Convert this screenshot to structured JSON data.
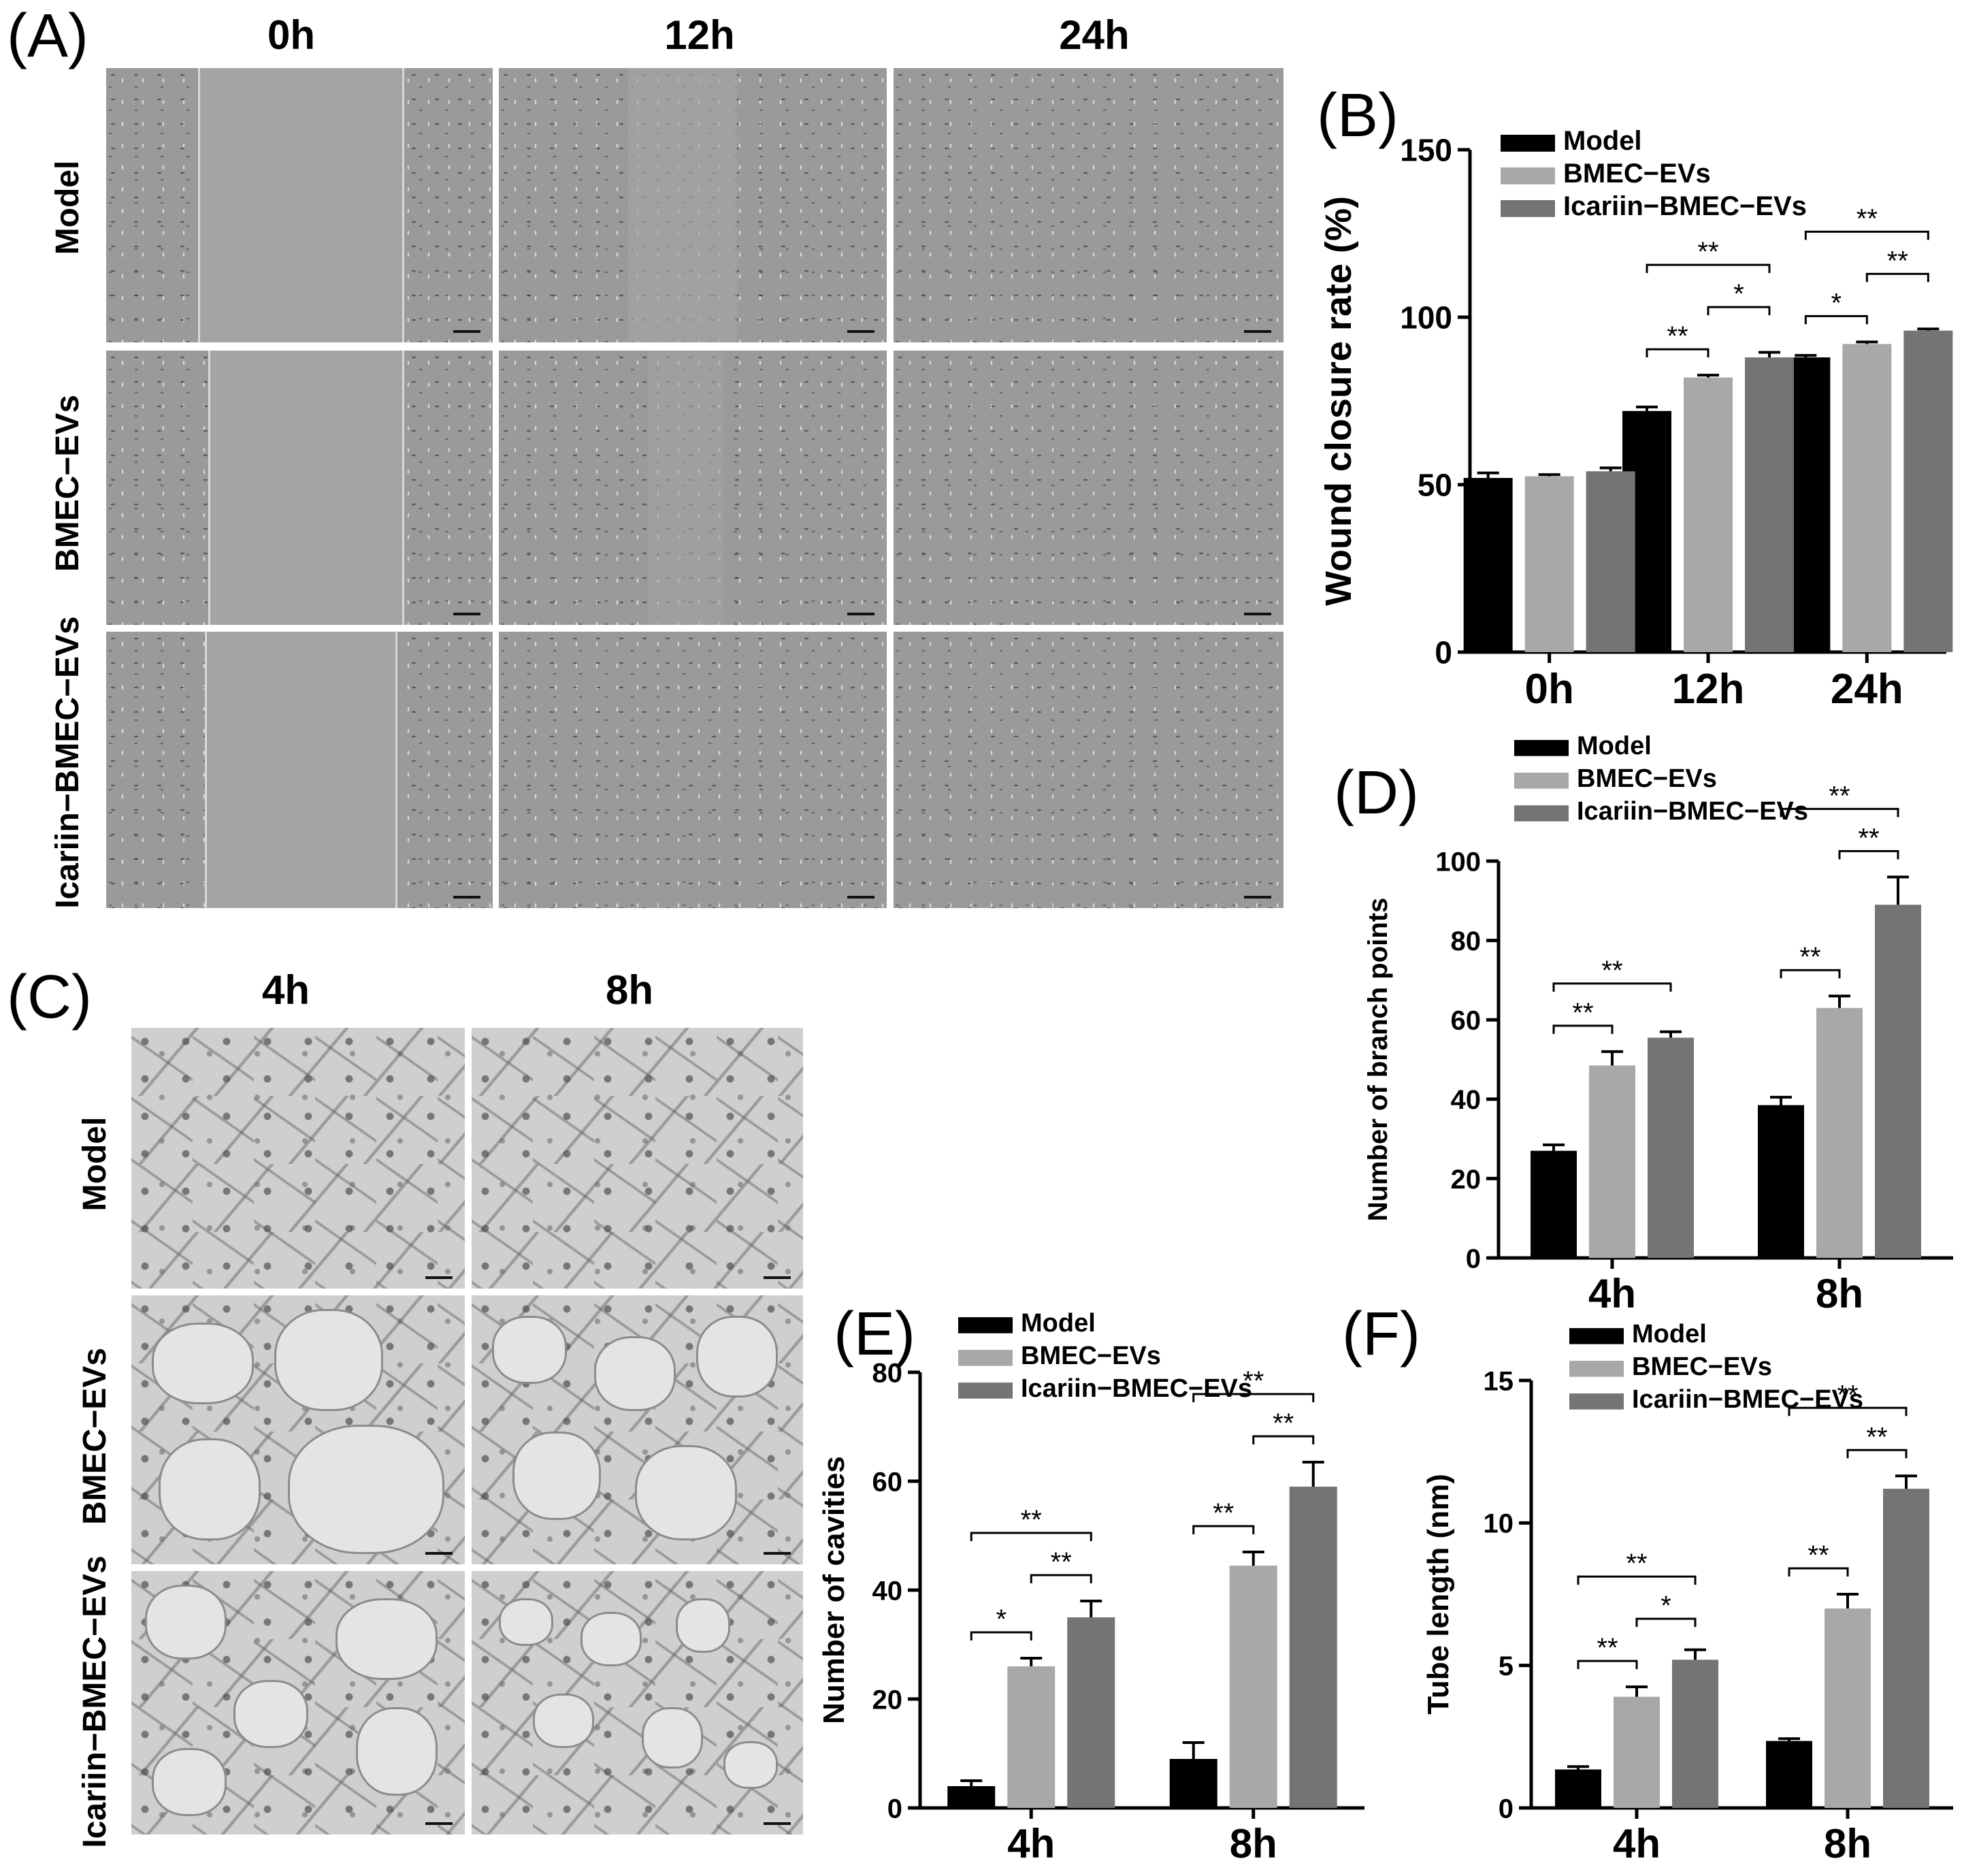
{
  "panels": {
    "A": {
      "label": "(A)",
      "columns": [
        "0h",
        "12h",
        "24h"
      ],
      "rows": [
        "Model",
        "BMEC−EVs",
        "Icariin−BMEC−EVs"
      ]
    },
    "C": {
      "label": "(C)",
      "columns": [
        "4h",
        "8h"
      ],
      "rows": [
        "Model",
        "BMEC−EVs",
        "Icariin−BMEC−EVs"
      ]
    }
  },
  "chart_data": [
    {
      "id": "B",
      "panel_label": "(B)",
      "type": "bar",
      "ylabel": "Wound closure rate (%)",
      "xlabel": "",
      "categories": [
        "0h",
        "12h",
        "24h"
      ],
      "ylim": [
        0,
        150
      ],
      "yticks": [
        0,
        50,
        100,
        150
      ],
      "series": [
        {
          "name": "Model",
          "color": "#000000",
          "values": [
            52,
            72,
            88
          ],
          "errors": [
            1.5,
            1.2,
            0.6
          ]
        },
        {
          "name": "BMEC−EVs",
          "color": "#a8a8a8",
          "values": [
            52.5,
            82,
            92
          ],
          "errors": [
            0.5,
            0.7,
            0.6
          ]
        },
        {
          "name": "Icariin−BMEC−EVs",
          "color": "#747474",
          "values": [
            54,
            88,
            96
          ],
          "errors": [
            1.0,
            1.5,
            0.5
          ]
        }
      ],
      "legend_position": "top-left",
      "significance": [
        {
          "category": 1,
          "from": 0,
          "to": 1,
          "label": "**"
        },
        {
          "category": 1,
          "from": 1,
          "to": 2,
          "label": "*"
        },
        {
          "category": 1,
          "from": 0,
          "to": 2,
          "label": "**"
        },
        {
          "category": 2,
          "from": 0,
          "to": 1,
          "label": "*"
        },
        {
          "category": 2,
          "from": 1,
          "to": 2,
          "label": "**"
        },
        {
          "category": 2,
          "from": 0,
          "to": 2,
          "label": "**"
        }
      ]
    },
    {
      "id": "D",
      "panel_label": "(D)",
      "type": "bar",
      "ylabel": "Number of branch points",
      "xlabel": "",
      "categories": [
        "4h",
        "8h"
      ],
      "ylim": [
        0,
        100
      ],
      "yticks": [
        0,
        20,
        40,
        60,
        80,
        100
      ],
      "series": [
        {
          "name": "Model",
          "color": "#000000",
          "values": [
            27,
            38.5
          ],
          "errors": [
            1.5,
            2
          ]
        },
        {
          "name": "BMEC−EVs",
          "color": "#a8a8a8",
          "values": [
            48.5,
            63
          ],
          "errors": [
            3.5,
            3
          ]
        },
        {
          "name": "Icariin−BMEC−EVs",
          "color": "#747474",
          "values": [
            55.5,
            89
          ],
          "errors": [
            1.5,
            7
          ]
        }
      ],
      "legend_position": "top-left",
      "significance": [
        {
          "category": 0,
          "from": 0,
          "to": 1,
          "label": "**"
        },
        {
          "category": 0,
          "from": 0,
          "to": 2,
          "label": "**"
        },
        {
          "category": 1,
          "from": 0,
          "to": 1,
          "label": "**"
        },
        {
          "category": 1,
          "from": 1,
          "to": 2,
          "label": "**"
        },
        {
          "category": 1,
          "from": 0,
          "to": 2,
          "label": "**"
        }
      ]
    },
    {
      "id": "E",
      "panel_label": "(E)",
      "type": "bar",
      "ylabel": "Number of cavities",
      "xlabel": "",
      "categories": [
        "4h",
        "8h"
      ],
      "ylim": [
        0,
        80
      ],
      "yticks": [
        0,
        20,
        40,
        60,
        80
      ],
      "series": [
        {
          "name": "Model",
          "color": "#000000",
          "values": [
            4,
            9
          ],
          "errors": [
            1,
            3
          ]
        },
        {
          "name": "BMEC−EVs",
          "color": "#a8a8a8",
          "values": [
            26,
            44.5
          ],
          "errors": [
            1.5,
            2.5
          ]
        },
        {
          "name": "Icariin−BMEC−EVs",
          "color": "#747474",
          "values": [
            35,
            59
          ],
          "errors": [
            3,
            4.5
          ]
        }
      ],
      "legend_position": "top-left",
      "significance": [
        {
          "category": 0,
          "from": 0,
          "to": 1,
          "label": "*"
        },
        {
          "category": 0,
          "from": 1,
          "to": 2,
          "label": "**"
        },
        {
          "category": 0,
          "from": 0,
          "to": 2,
          "label": "**"
        },
        {
          "category": 1,
          "from": 0,
          "to": 1,
          "label": "**"
        },
        {
          "category": 1,
          "from": 1,
          "to": 2,
          "label": "**"
        },
        {
          "category": 1,
          "from": 0,
          "to": 2,
          "label": "**"
        }
      ]
    },
    {
      "id": "F",
      "panel_label": "(F)",
      "type": "bar",
      "ylabel": "Tube length (nm)",
      "xlabel": "",
      "categories": [
        "4h",
        "8h"
      ],
      "ylim": [
        0,
        15
      ],
      "yticks": [
        0,
        5,
        10,
        15
      ],
      "series": [
        {
          "name": "Model",
          "color": "#000000",
          "values": [
            1.35,
            2.35
          ],
          "errors": [
            0.1,
            0.08
          ]
        },
        {
          "name": "BMEC−EVs",
          "color": "#a8a8a8",
          "values": [
            3.9,
            7
          ],
          "errors": [
            0.35,
            0.5
          ]
        },
        {
          "name": "Icariin−BMEC−EVs",
          "color": "#747474",
          "values": [
            5.2,
            11.2
          ],
          "errors": [
            0.35,
            0.45
          ]
        }
      ],
      "legend_position": "top-left",
      "significance": [
        {
          "category": 0,
          "from": 0,
          "to": 1,
          "label": "**"
        },
        {
          "category": 0,
          "from": 1,
          "to": 2,
          "label": "*"
        },
        {
          "category": 0,
          "from": 0,
          "to": 2,
          "label": "**"
        },
        {
          "category": 1,
          "from": 0,
          "to": 1,
          "label": "**"
        },
        {
          "category": 1,
          "from": 1,
          "to": 2,
          "label": "**"
        },
        {
          "category": 1,
          "from": 0,
          "to": 2,
          "label": "**"
        }
      ]
    }
  ]
}
